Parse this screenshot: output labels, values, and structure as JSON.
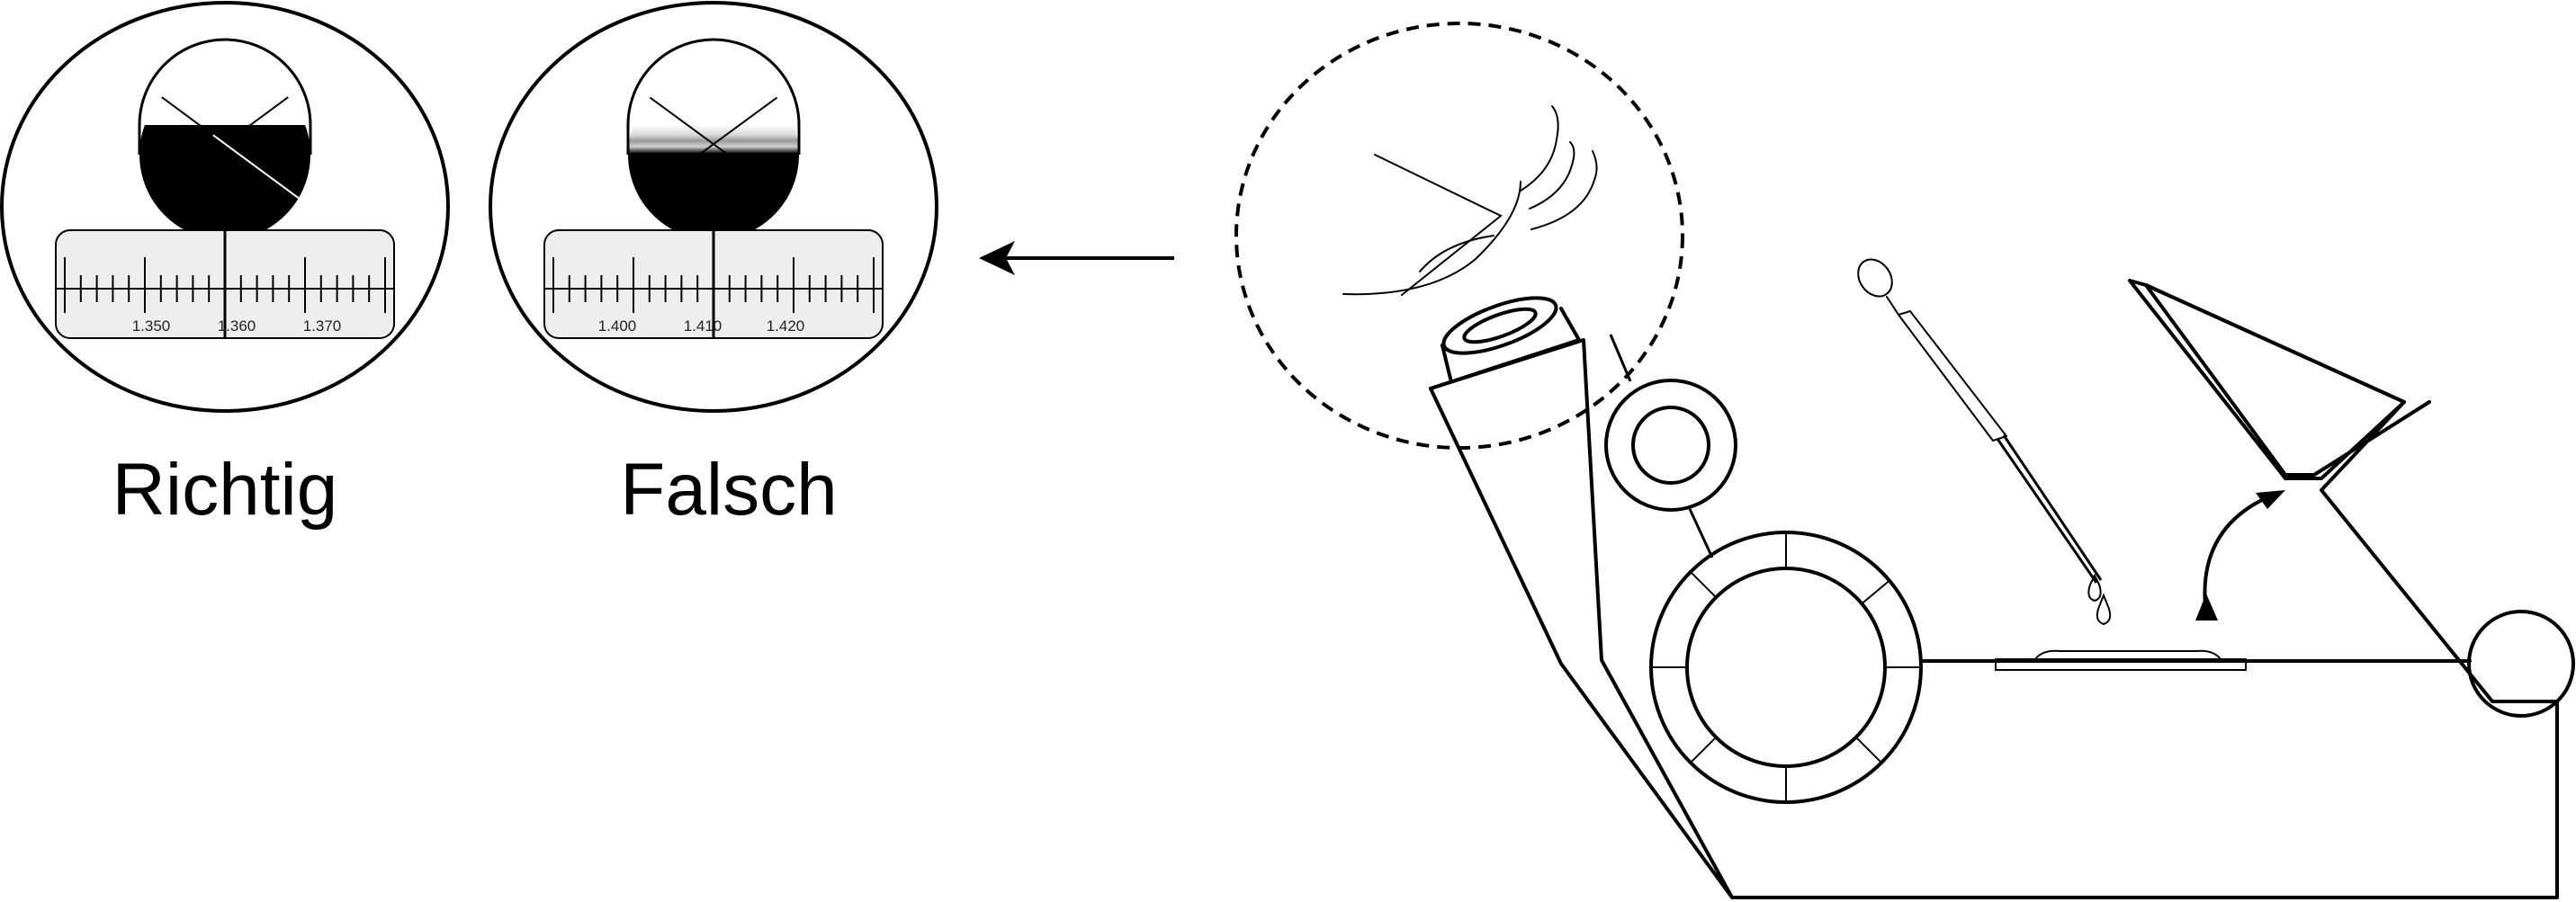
{
  "views": [
    {
      "id": "correct",
      "label": "Richtig",
      "scale_labels": [
        "1.350",
        "1.360",
        "1.370"
      ],
      "boundary": "sharp"
    },
    {
      "id": "wrong",
      "label": "Falsch",
      "scale_labels": [
        "1.400",
        "1.410",
        "1.420"
      ],
      "boundary": "blurred"
    }
  ],
  "colors": {
    "ink": "#000000",
    "scale_background": "#eeeeee",
    "dark_field": "#000000",
    "light_field": "#ffffff"
  },
  "icons": [
    "refractometer",
    "pipette",
    "eye",
    "arrow-left",
    "curved-double-arrow"
  ]
}
